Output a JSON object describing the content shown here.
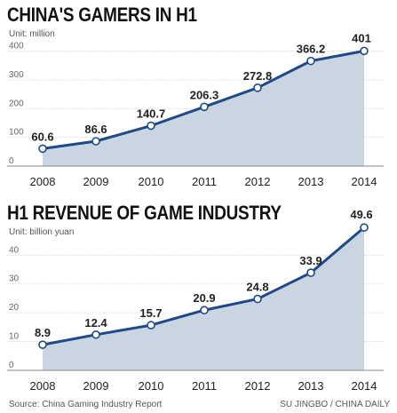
{
  "chart_data": [
    {
      "type": "area",
      "title": "CHINA'S GAMERS IN H1",
      "unit": "Unit: million",
      "categories": [
        "2008",
        "2009",
        "2010",
        "2011",
        "2012",
        "2013",
        "2014"
      ],
      "values": [
        60.6,
        86.6,
        140.7,
        206.3,
        272.8,
        366.2,
        401
      ],
      "value_labels": [
        "60.6",
        "86.6",
        "140.7",
        "206.3",
        "272.8",
        "366.2",
        "401"
      ],
      "yticks": [
        0,
        100,
        200,
        300,
        400
      ],
      "ylim": [
        0,
        430
      ],
      "grid": true,
      "colors": {
        "area": "#c9d6e2",
        "line": "#1e4a87",
        "grid": "#d4d4d4"
      }
    },
    {
      "type": "area",
      "title": "H1 REVENUE OF GAME INDUSTRY",
      "unit": "Unit: billion yuan",
      "categories": [
        "2008",
        "2009",
        "2010",
        "2011",
        "2012",
        "2013",
        "2014"
      ],
      "values": [
        8.9,
        12.4,
        15.7,
        20.9,
        24.8,
        33.9,
        49.6
      ],
      "value_labels": [
        "8.9",
        "12.4",
        "15.7",
        "20.9",
        "24.8",
        "33.9",
        "49.6"
      ],
      "yticks": [
        0,
        10,
        20,
        30,
        40
      ],
      "ylim": [
        0,
        51.5
      ],
      "grid": true,
      "colors": {
        "area": "#c9d6e2",
        "line": "#1e4a87",
        "grid": "#d4d4d4"
      }
    }
  ],
  "footer": {
    "source": "Source: China Gaming Industry Report",
    "credit": "SU JINGBO / CHINA DAILY"
  }
}
